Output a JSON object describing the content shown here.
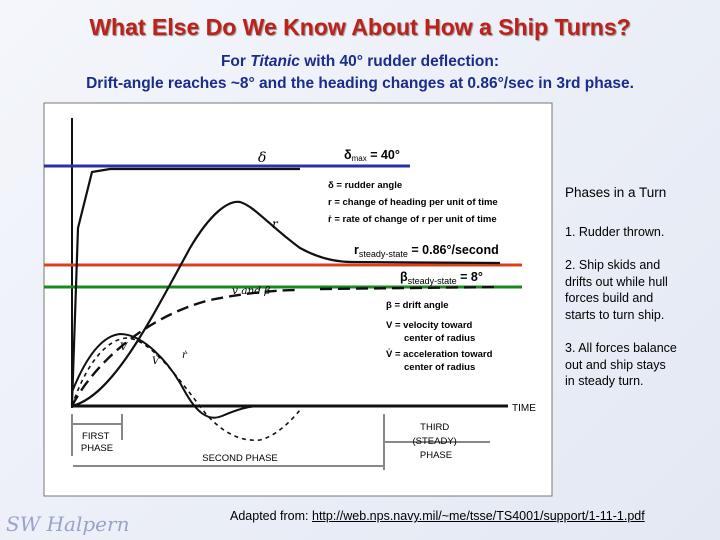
{
  "title": "What Else Do We Know About How a Ship Turns?",
  "subtitle": {
    "line1_prefix": "For ",
    "line1_ship": "Titanic",
    "line1_suffix": " with 40° rudder deflection:",
    "line2": "Drift-angle reaches ~8° and the heading changes at 0.86°/sec in 3rd phase."
  },
  "diagram": {
    "delta_symbol": "δ",
    "delta_max_prefix": "δ",
    "delta_max_sub": "max",
    "delta_max_suffix": " = 40°",
    "r_label": "r",
    "r_steady_prefix": "r",
    "r_steady_sub": "steady-state",
    "r_steady_suffix": " = 0.86°/second",
    "beta_steady_prefix": "β",
    "beta_steady_sub": "steady-state",
    "beta_steady_suffix": " = 8°",
    "v_and_beta_label": "v and β",
    "v_label": "V",
    "vdot_label": "V̇",
    "rdot_label": "ṙ",
    "time_label": "TIME",
    "legend_top": [
      "δ = rudder angle",
      "r = change of heading per unit of time",
      "ṙ = rate of change of r per unit of time"
    ],
    "legend_bottom": [
      "β = drift angle",
      "V = velocity toward",
      "center of radius",
      "V̇ = acceleration toward",
      "center of radius"
    ],
    "phase_first": [
      "FIRST",
      "PHASE"
    ],
    "phase_second": "SECOND PHASE",
    "phase_third": [
      "THIRD",
      "(STEADY)",
      "PHASE"
    ]
  },
  "sidebar": {
    "heading": "Phases in a Turn",
    "items": [
      [
        "1. Rudder thrown."
      ],
      [
        "2. Ship skids and",
        "drifts out while hull",
        "forces build and",
        "starts to turn ship."
      ],
      [
        "3. All forces balance",
        "out and ship stays",
        "in steady turn."
      ]
    ]
  },
  "footer": {
    "prefix": "Adapted from: ",
    "link": "http://web.nps.navy.mil/~me/tsse/TS4001/support/1-11-1.pdf"
  },
  "signature": "SW Halpern",
  "colors": {
    "title": "#c0201a",
    "subtitle": "#1a2d8c",
    "delta_line": "#2b2fa8",
    "r_line": "#d9401c",
    "beta_line": "#1a8a1a",
    "curve": "#111111"
  }
}
